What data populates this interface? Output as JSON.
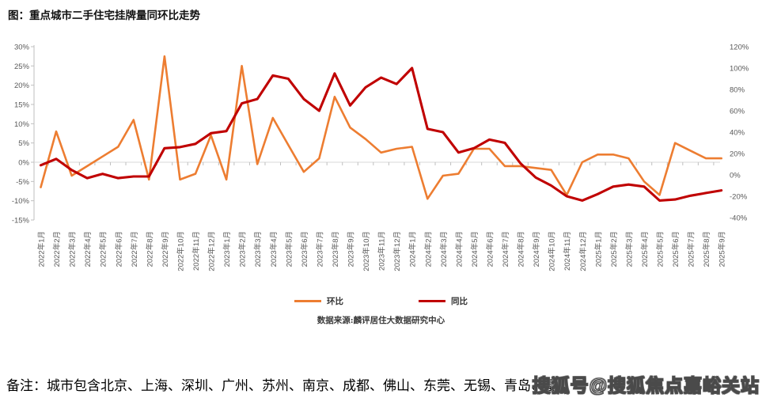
{
  "page": {
    "title": "图：重点城市二手住宅挂牌量同环比走势",
    "source": "数据来源:麟评居住大数据研究中心",
    "note": "备注：城市包含北京、上海、深圳、广州、苏州、南京、成都、佛山、东莞、无锡、青岛、厦",
    "watermark": "搜狐号@搜狐焦点嘉峪关站"
  },
  "legend": [
    {
      "label": "环比",
      "color": "#ED7D31"
    },
    {
      "label": "同比",
      "color": "#C00000"
    }
  ],
  "chart_data": {
    "type": "line",
    "title": "重点城市二手住宅挂牌量同环比走势",
    "grid": "zero-line-only",
    "legend_position": "bottom",
    "left_axis": {
      "min": -15,
      "max": 30,
      "step": 5,
      "format": "percent"
    },
    "right_axis": {
      "min": -40,
      "max": 120,
      "step": 20,
      "format": "percent"
    },
    "categories": [
      "2022年1月",
      "2022年2月",
      "2022年3月",
      "2022年4月",
      "2022年5月",
      "2022年6月",
      "2022年7月",
      "2022年8月",
      "2022年9月",
      "2022年10月",
      "2022年11月",
      "2022年12月",
      "2023年1月",
      "2023年2月",
      "2023年3月",
      "2023年4月",
      "2023年5月",
      "2023年6月",
      "2023年7月",
      "2023年8月",
      "2023年9月",
      "2023年10月",
      "2023年11月",
      "2023年12月",
      "2024年1月",
      "2024年2月",
      "2024年3月",
      "2024年4月",
      "2024年5月",
      "2024年6月",
      "2024年7月",
      "2024年8月",
      "2024年9月",
      "2024年10月",
      "2024年11月",
      "2024年12月",
      "2025年1月",
      "2025年2月",
      "2025年3月",
      "2025年4月",
      "2025年5月",
      "2025年6月",
      "2025年7月",
      "2025年8月",
      "2025年9月"
    ],
    "series": [
      {
        "name": "环比",
        "axis": "left",
        "color": "#ED7D31",
        "values": [
          -6.5,
          8,
          -3.5,
          -1,
          1.5,
          4,
          11,
          -4.5,
          27.5,
          -4.5,
          -3,
          7,
          -4.5,
          25,
          -0.5,
          11.5,
          4.5,
          -2.5,
          1,
          17,
          9,
          6,
          2.5,
          3.5,
          4,
          -9.5,
          -3.5,
          -3,
          3.5,
          3.5,
          -1,
          -1,
          -1.5,
          -2,
          -8.5,
          0,
          2,
          2,
          1,
          -5,
          -8.5,
          5,
          3,
          1,
          1
        ]
      },
      {
        "name": "同比",
        "axis": "right",
        "color": "#C00000",
        "values": [
          9,
          15,
          4.5,
          -3,
          1,
          -3,
          -1.5,
          -1.5,
          25,
          26,
          29,
          39,
          41,
          67,
          71,
          93,
          90,
          71,
          60,
          95,
          65,
          82,
          91,
          85,
          100,
          43,
          40,
          21,
          25,
          33,
          30,
          11,
          -2.5,
          -10,
          -20,
          -24,
          -18,
          -11,
          -9,
          -11,
          -24,
          -23,
          -19.5,
          -17,
          -14.5
        ]
      }
    ]
  }
}
